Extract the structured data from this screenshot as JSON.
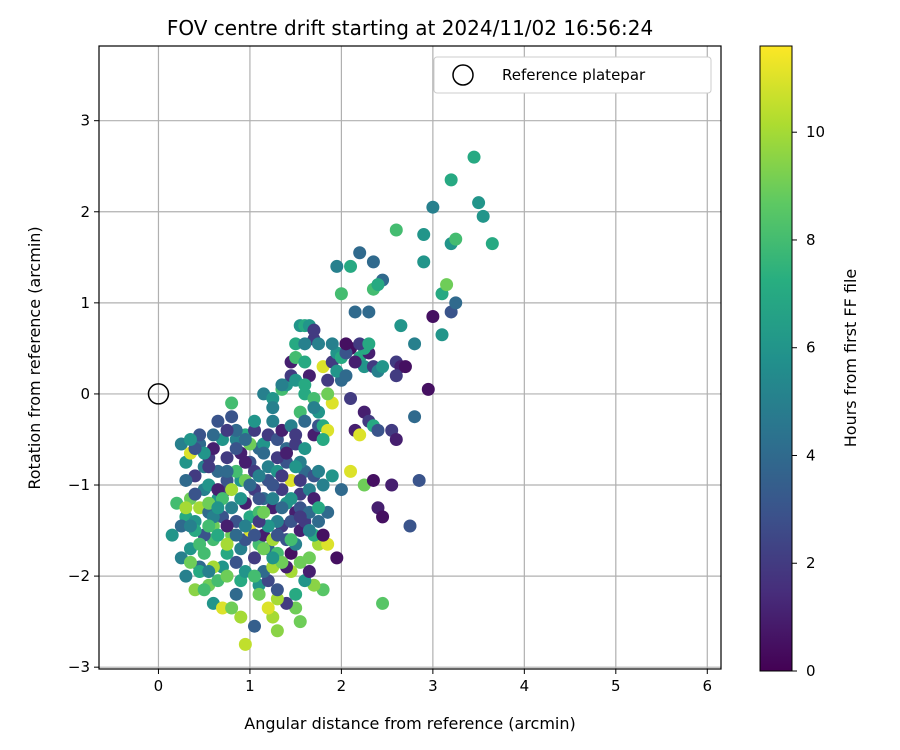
{
  "chart_data": {
    "type": "scatter",
    "title": "FOV centre drift starting at 2024/11/02 16:56:24",
    "xlabel": "Angular distance from reference (arcmin)",
    "ylabel": "Rotation from reference (arcmin)",
    "xlim": [
      -0.65,
      6.15
    ],
    "ylim": [
      -3.02,
      3.82
    ],
    "xticks": [
      0,
      1,
      2,
      3,
      4,
      5,
      6
    ],
    "yticks": [
      -3,
      -2,
      -1,
      0,
      1,
      2,
      3
    ],
    "grid": true,
    "colormap": "viridis",
    "colorbar": {
      "label": "Hours from first FF file",
      "range": [
        0,
        11.6
      ],
      "ticks": [
        0,
        2,
        4,
        6,
        8,
        10
      ]
    },
    "legend": {
      "placement": "top-right",
      "entries": [
        {
          "label": "Reference platepar",
          "marker": "open-circle"
        }
      ]
    },
    "reference_point": {
      "x": 0,
      "y": 0
    },
    "points": [
      [
        0.95,
        -2.75,
        10.5
      ],
      [
        1.05,
        -2.55,
        3.5
      ],
      [
        1.3,
        -2.6,
        9.5
      ],
      [
        1.55,
        -2.5,
        9
      ],
      [
        1.5,
        -2.35,
        9
      ],
      [
        0.9,
        -2.45,
        10
      ],
      [
        1.25,
        -2.45,
        10
      ],
      [
        1.8,
        -2.15,
        8.5
      ],
      [
        1.7,
        -2.1,
        9.5
      ],
      [
        2.45,
        -2.3,
        8.5
      ],
      [
        1.4,
        -2.3,
        2
      ],
      [
        1.3,
        -2.25,
        10
      ],
      [
        0.6,
        -2.3,
        6
      ],
      [
        0.7,
        -2.35,
        11
      ],
      [
        0.4,
        -2.15,
        9.5
      ],
      [
        0.55,
        -2.1,
        9
      ],
      [
        0.85,
        -2.2,
        4
      ],
      [
        1.1,
        -2.1,
        6
      ],
      [
        1.2,
        -2.05,
        2.5
      ],
      [
        1.45,
        -1.95,
        10
      ],
      [
        1.55,
        -1.85,
        9
      ],
      [
        1.65,
        -1.8,
        9
      ],
      [
        1.75,
        -1.65,
        10
      ],
      [
        1.85,
        -1.65,
        11
      ],
      [
        1.95,
        -1.8,
        0.5
      ],
      [
        0.15,
        -1.55,
        6
      ],
      [
        0.25,
        -1.8,
        5
      ],
      [
        0.3,
        -2.0,
        5
      ],
      [
        0.35,
        -1.7,
        6
      ],
      [
        0.45,
        -1.9,
        4
      ],
      [
        0.5,
        -1.75,
        8
      ],
      [
        0.6,
        -1.6,
        8
      ],
      [
        0.7,
        -1.9,
        6
      ],
      [
        0.75,
        -1.75,
        7
      ],
      [
        0.8,
        -1.55,
        9
      ],
      [
        0.85,
        -1.85,
        3
      ],
      [
        0.9,
        -1.7,
        5
      ],
      [
        0.95,
        -1.6,
        3
      ],
      [
        1.0,
        -1.5,
        11
      ],
      [
        1.05,
        -1.8,
        2
      ],
      [
        1.1,
        -1.65,
        8
      ],
      [
        1.15,
        -1.55,
        1
      ],
      [
        1.2,
        -1.7,
        4
      ],
      [
        1.25,
        -1.6,
        10
      ],
      [
        1.3,
        -1.75,
        8
      ],
      [
        1.35,
        -1.45,
        2
      ],
      [
        1.4,
        -1.6,
        3
      ],
      [
        1.45,
        -1.75,
        0.5
      ],
      [
        1.5,
        -1.65,
        5
      ],
      [
        1.55,
        -1.5,
        1
      ],
      [
        1.6,
        -1.4,
        2
      ],
      [
        1.7,
        -1.55,
        7
      ],
      [
        1.75,
        -1.4,
        4
      ],
      [
        1.8,
        -1.55,
        0.5
      ],
      [
        1.85,
        -1.3,
        4
      ],
      [
        0.2,
        -1.2,
        8
      ],
      [
        0.3,
        -1.35,
        7
      ],
      [
        0.35,
        -1.15,
        9
      ],
      [
        0.4,
        -1.4,
        6
      ],
      [
        0.45,
        -1.25,
        10
      ],
      [
        0.5,
        -1.05,
        5
      ],
      [
        0.55,
        -1.3,
        4
      ],
      [
        0.6,
        -1.45,
        9
      ],
      [
        0.65,
        -1.15,
        6
      ],
      [
        0.7,
        -1.35,
        3
      ],
      [
        0.75,
        -1.05,
        2
      ],
      [
        0.8,
        -1.25,
        5
      ],
      [
        0.85,
        -1.4,
        3
      ],
      [
        0.9,
        -0.95,
        6
      ],
      [
        0.95,
        -1.2,
        1
      ],
      [
        1.0,
        -1.35,
        7
      ],
      [
        1.05,
        -1.05,
        2
      ],
      [
        1.1,
        -1.3,
        8
      ],
      [
        1.15,
        -1.15,
        4
      ],
      [
        1.2,
        -0.95,
        3
      ],
      [
        1.25,
        -1.25,
        1
      ],
      [
        1.3,
        -1.4,
        5
      ],
      [
        1.35,
        -1.05,
        2
      ],
      [
        1.4,
        -1.2,
        6
      ],
      [
        1.45,
        -0.95,
        11
      ],
      [
        1.5,
        -1.3,
        1
      ],
      [
        1.55,
        -1.1,
        2
      ],
      [
        1.6,
        -0.85,
        4
      ],
      [
        1.65,
        -1.05,
        5
      ],
      [
        1.7,
        -0.9,
        3
      ],
      [
        0.25,
        -0.55,
        5
      ],
      [
        0.3,
        -0.75,
        6
      ],
      [
        0.35,
        -0.65,
        11
      ],
      [
        0.4,
        -0.9,
        2
      ],
      [
        0.45,
        -0.55,
        4
      ],
      [
        0.5,
        -0.8,
        5
      ],
      [
        0.55,
        -0.7,
        2
      ],
      [
        0.6,
        -0.6,
        1
      ],
      [
        0.65,
        -0.85,
        4
      ],
      [
        0.7,
        -0.5,
        6
      ],
      [
        0.75,
        -0.7,
        2
      ],
      [
        0.8,
        -0.25,
        3
      ],
      [
        0.85,
        -0.5,
        5
      ],
      [
        0.9,
        -0.65,
        1
      ],
      [
        0.95,
        -0.45,
        7
      ],
      [
        1.0,
        -0.75,
        3
      ],
      [
        1.05,
        -0.4,
        2
      ],
      [
        1.1,
        -0.6,
        4
      ],
      [
        1.15,
        -0.55,
        6
      ],
      [
        1.2,
        -0.45,
        2
      ],
      [
        1.25,
        -0.3,
        5
      ],
      [
        1.3,
        -0.5,
        3
      ],
      [
        1.35,
        -0.4,
        1
      ],
      [
        1.4,
        -0.6,
        4
      ],
      [
        1.45,
        -0.35,
        5
      ],
      [
        1.5,
        -0.55,
        2
      ],
      [
        1.55,
        -0.75,
        5
      ],
      [
        1.6,
        -0.6,
        6
      ],
      [
        1.7,
        -0.45,
        1
      ],
      [
        1.75,
        -0.35,
        3
      ],
      [
        1.15,
        0.0,
        5
      ],
      [
        1.25,
        -0.05,
        6
      ],
      [
        1.35,
        0.05,
        8
      ],
      [
        1.4,
        0.1,
        6
      ],
      [
        1.45,
        0.2,
        2
      ],
      [
        1.5,
        0.15,
        6
      ],
      [
        1.55,
        -0.2,
        8
      ],
      [
        1.6,
        0.0,
        7
      ],
      [
        1.7,
        -0.05,
        8
      ],
      [
        1.75,
        -0.2,
        6
      ],
      [
        1.8,
        -0.35,
        7
      ],
      [
        1.85,
        -0.4,
        11
      ],
      [
        1.9,
        -0.1,
        11
      ],
      [
        2.0,
        0.15,
        4
      ],
      [
        2.1,
        -0.05,
        2
      ],
      [
        2.25,
        -0.2,
        1
      ],
      [
        2.3,
        -0.3,
        2
      ],
      [
        2.35,
        -0.35,
        7
      ],
      [
        2.4,
        -0.4,
        3
      ],
      [
        2.55,
        -0.4,
        2
      ],
      [
        2.6,
        -0.5,
        1
      ],
      [
        2.8,
        -0.25,
        4
      ],
      [
        2.15,
        -0.4,
        1
      ],
      [
        2.2,
        -0.45,
        11
      ],
      [
        1.8,
        -0.5,
        7
      ],
      [
        1.45,
        0.35,
        1
      ],
      [
        1.5,
        0.55,
        7
      ],
      [
        1.55,
        0.75,
        6
      ],
      [
        1.6,
        0.75,
        7
      ],
      [
        1.7,
        0.6,
        2
      ],
      [
        1.75,
        0.55,
        5
      ],
      [
        1.8,
        0.3,
        11
      ],
      [
        1.9,
        0.35,
        2
      ],
      [
        1.95,
        0.45,
        6
      ],
      [
        2.0,
        0.4,
        7
      ],
      [
        2.1,
        0.5,
        0.5
      ],
      [
        2.2,
        0.4,
        7
      ],
      [
        2.25,
        0.3,
        6
      ],
      [
        2.3,
        0.45,
        1
      ],
      [
        2.35,
        0.3,
        2
      ],
      [
        2.4,
        0.25,
        5
      ],
      [
        2.6,
        0.35,
        2
      ],
      [
        2.65,
        0.3,
        1
      ],
      [
        2.8,
        0.55,
        5
      ],
      [
        2.95,
        0.05,
        0.5
      ],
      [
        3.0,
        0.85,
        0.5
      ],
      [
        2.65,
        0.75,
        6
      ],
      [
        2.25,
        0.5,
        7
      ],
      [
        2.05,
        0.45,
        3
      ],
      [
        1.85,
        0.15,
        2
      ],
      [
        1.5,
        0.4,
        8
      ],
      [
        1.6,
        0.35,
        7
      ],
      [
        1.65,
        0.75,
        6
      ],
      [
        1.95,
        0.25,
        6
      ],
      [
        2.15,
        0.9,
        4
      ],
      [
        2.3,
        0.9,
        4
      ],
      [
        2.45,
        1.25,
        4
      ],
      [
        2.35,
        1.15,
        8
      ],
      [
        2.4,
        1.2,
        7
      ],
      [
        2.1,
        1.4,
        7
      ],
      [
        2.0,
        1.1,
        8
      ],
      [
        2.2,
        1.55,
        4
      ],
      [
        2.35,
        1.45,
        4
      ],
      [
        1.95,
        1.4,
        5
      ],
      [
        2.6,
        1.8,
        8
      ],
      [
        2.9,
        1.75,
        6
      ],
      [
        2.9,
        1.45,
        6
      ],
      [
        3.0,
        2.05,
        5
      ],
      [
        3.1,
        1.1,
        7
      ],
      [
        3.15,
        1.2,
        9
      ],
      [
        3.2,
        0.9,
        3
      ],
      [
        3.25,
        1.0,
        4
      ],
      [
        3.2,
        1.65,
        6
      ],
      [
        3.25,
        1.7,
        8
      ],
      [
        3.5,
        2.1,
        6
      ],
      [
        3.55,
        1.95,
        6
      ],
      [
        3.65,
        1.65,
        7
      ],
      [
        3.45,
        2.6,
        7
      ],
      [
        3.2,
        2.35,
        7
      ],
      [
        3.1,
        0.65,
        6
      ],
      [
        0.3,
        -0.95,
        4
      ],
      [
        0.4,
        -1.1,
        3
      ],
      [
        0.55,
        -1.0,
        6
      ],
      [
        0.65,
        -1.05,
        1
      ],
      [
        0.75,
        -0.95,
        3
      ],
      [
        0.85,
        -0.85,
        8
      ],
      [
        0.95,
        -0.95,
        9
      ],
      [
        1.05,
        -0.85,
        2
      ],
      [
        1.2,
        -0.8,
        5
      ],
      [
        1.3,
        -0.85,
        6
      ],
      [
        1.4,
        -0.75,
        3
      ],
      [
        1.5,
        -0.8,
        6
      ],
      [
        1.55,
        -0.95,
        2
      ],
      [
        1.75,
        -0.85,
        5
      ],
      [
        1.8,
        -1.0,
        5
      ],
      [
        1.9,
        -0.9,
        6
      ],
      [
        2.0,
        -1.05,
        4
      ],
      [
        2.1,
        -0.85,
        11
      ],
      [
        2.25,
        -1.0,
        9
      ],
      [
        2.35,
        -0.95,
        0.5
      ],
      [
        2.55,
        -1.0,
        1
      ],
      [
        2.85,
        -0.95,
        3
      ],
      [
        2.4,
        -1.25,
        1
      ],
      [
        2.45,
        -1.35,
        0.5
      ],
      [
        2.75,
        -1.45,
        3
      ],
      [
        1.1,
        -2.2,
        9
      ],
      [
        1.2,
        -2.35,
        11
      ],
      [
        1.3,
        -2.15,
        3
      ],
      [
        0.9,
        -2.05,
        7
      ],
      [
        0.8,
        -2.35,
        9
      ],
      [
        0.65,
        -2.05,
        8
      ],
      [
        0.5,
        -2.15,
        8
      ],
      [
        0.45,
        -1.95,
        7
      ],
      [
        0.35,
        -1.85,
        9
      ],
      [
        1.5,
        -2.2,
        7
      ],
      [
        1.6,
        -2.05,
        6
      ],
      [
        1.4,
        -1.9,
        1
      ],
      [
        1.15,
        -1.95,
        4
      ],
      [
        1.25,
        -1.9,
        10
      ],
      [
        1.35,
        -1.85,
        9
      ],
      [
        0.95,
        -1.95,
        6
      ],
      [
        1.05,
        -2.0,
        8
      ],
      [
        0.75,
        -2.0,
        9
      ],
      [
        0.6,
        -1.9,
        10
      ],
      [
        0.55,
        -1.95,
        5
      ],
      [
        1.65,
        -1.95,
        1
      ],
      [
        1.45,
        -1.6,
        8
      ],
      [
        1.3,
        -1.55,
        3
      ],
      [
        1.2,
        -1.45,
        6
      ],
      [
        1.1,
        -1.4,
        2
      ],
      [
        0.45,
        -0.45,
        3
      ],
      [
        0.65,
        -0.3,
        3
      ],
      [
        0.85,
        -0.4,
        4
      ],
      [
        1.0,
        -0.55,
        9
      ],
      [
        1.15,
        -0.65,
        4
      ],
      [
        1.3,
        -0.7,
        2
      ],
      [
        1.4,
        -0.65,
        1
      ],
      [
        1.5,
        -0.45,
        2
      ],
      [
        1.6,
        -0.3,
        4
      ],
      [
        1.7,
        -0.15,
        5
      ],
      [
        0.55,
        -0.8,
        2
      ],
      [
        0.75,
        -0.85,
        4
      ],
      [
        0.95,
        -0.75,
        1
      ],
      [
        1.1,
        -0.9,
        5
      ],
      [
        1.25,
        -1.0,
        3
      ],
      [
        1.35,
        -0.9,
        2
      ],
      [
        1.45,
        -1.15,
        6
      ],
      [
        1.55,
        -1.25,
        3
      ],
      [
        1.65,
        -1.3,
        4
      ],
      [
        1.7,
        -1.15,
        1
      ],
      [
        0.5,
        -1.55,
        3
      ],
      [
        0.4,
        -1.5,
        7
      ],
      [
        0.3,
        -1.25,
        10
      ],
      [
        0.25,
        -1.45,
        4
      ],
      [
        0.6,
        -1.35,
        5
      ],
      [
        0.7,
        -1.15,
        8
      ],
      [
        0.8,
        -1.05,
        10
      ],
      [
        0.9,
        -1.15,
        6
      ],
      [
        1.0,
        -1.0,
        4
      ],
      [
        1.1,
        -1.15,
        3
      ],
      [
        1.15,
        -1.3,
        9
      ],
      [
        1.25,
        -1.15,
        5
      ],
      [
        1.35,
        -1.25,
        4
      ],
      [
        1.45,
        -1.4,
        3
      ],
      [
        1.55,
        -1.35,
        2
      ],
      [
        1.65,
        -1.5,
        5
      ],
      [
        1.75,
        -1.25,
        7
      ],
      [
        0.55,
        -1.45,
        8
      ],
      [
        0.65,
        -1.55,
        7
      ],
      [
        0.75,
        -1.65,
        10
      ],
      [
        0.85,
        -1.55,
        4
      ],
      [
        0.95,
        -1.45,
        5
      ],
      [
        1.05,
        -1.55,
        3
      ],
      [
        1.15,
        -1.7,
        9
      ],
      [
        1.25,
        -1.8,
        6
      ],
      [
        0.45,
        -1.65,
        8
      ],
      [
        0.35,
        -1.45,
        5
      ],
      [
        0.55,
        -1.2,
        9
      ],
      [
        0.65,
        -1.25,
        6
      ],
      [
        0.75,
        -1.45,
        1
      ],
      [
        1.6,
        0.55,
        5
      ],
      [
        1.65,
        0.2,
        1
      ],
      [
        1.9,
        0.55,
        5
      ],
      [
        2.05,
        0.55,
        0.5
      ],
      [
        2.2,
        0.55,
        2
      ],
      [
        2.3,
        0.55,
        7
      ],
      [
        2.45,
        0.3,
        6
      ],
      [
        2.7,
        0.3,
        0.5
      ],
      [
        2.05,
        0.2,
        4
      ],
      [
        1.85,
        0.0,
        9
      ],
      [
        2.6,
        0.2,
        2
      ],
      [
        2.15,
        0.35,
        1
      ],
      [
        1.7,
        0.7,
        2
      ],
      [
        1.6,
        0.1,
        7
      ],
      [
        1.35,
        0.1,
        5
      ],
      [
        1.25,
        -0.15,
        5
      ],
      [
        1.05,
        -0.3,
        6
      ],
      [
        0.95,
        -0.5,
        4
      ],
      [
        0.85,
        -0.6,
        3
      ],
      [
        0.75,
        -0.4,
        2
      ],
      [
        0.6,
        -0.45,
        4
      ],
      [
        0.5,
        -0.65,
        6
      ],
      [
        0.4,
        -0.6,
        3
      ],
      [
        0.35,
        -0.5,
        6
      ],
      [
        0.8,
        -0.1,
        8
      ]
    ]
  }
}
